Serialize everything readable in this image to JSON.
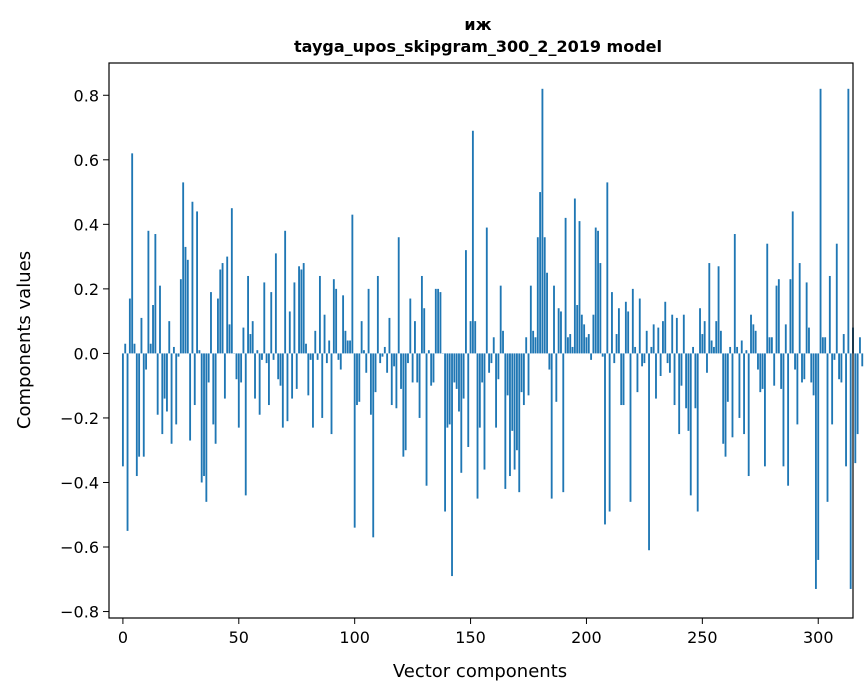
{
  "chart_data": {
    "type": "bar",
    "title": "иж",
    "subtitle": "tayga_upos_skipgram_300_2_2019 model",
    "xlabel": "Vector components",
    "ylabel": "Components values",
    "xlim": [
      -6,
      315
    ],
    "ylim": [
      -0.82,
      0.9
    ],
    "xticks": [
      0,
      50,
      100,
      150,
      200,
      250,
      300
    ],
    "yticks": [
      -0.8,
      -0.6,
      -0.4,
      -0.2,
      0.0,
      0.2,
      0.4,
      0.6,
      0.8
    ],
    "ytick_labels": [
      "−0.8",
      "−0.6",
      "−0.4",
      "−0.2",
      "0.0",
      "0.2",
      "0.4",
      "0.6",
      "0.8"
    ],
    "bar_color": "#1f77b4",
    "values": [
      -0.35,
      0.03,
      -0.55,
      0.17,
      0.62,
      0.03,
      -0.38,
      -0.32,
      0.11,
      -0.32,
      -0.05,
      0.38,
      0.03,
      0.15,
      0.37,
      -0.19,
      0.21,
      -0.25,
      -0.14,
      -0.18,
      0.1,
      -0.28,
      0.02,
      -0.22,
      -0.01,
      0.23,
      0.53,
      0.33,
      0.29,
      -0.27,
      0.47,
      -0.16,
      0.44,
      0.01,
      -0.4,
      -0.38,
      -0.46,
      -0.09,
      0.19,
      -0.22,
      -0.28,
      0.17,
      0.26,
      0.28,
      -0.14,
      0.3,
      0.09,
      0.45,
      0.0,
      -0.08,
      -0.23,
      -0.09,
      0.08,
      -0.44,
      0.24,
      0.06,
      0.1,
      -0.14,
      0.01,
      -0.19,
      -0.02,
      0.22,
      -0.03,
      -0.16,
      0.19,
      -0.02,
      0.31,
      -0.08,
      -0.1,
      -0.23,
      0.38,
      -0.21,
      0.13,
      -0.14,
      0.22,
      -0.11,
      0.27,
      0.26,
      0.28,
      0.03,
      -0.13,
      -0.02,
      -0.23,
      0.07,
      -0.02,
      0.24,
      -0.2,
      0.12,
      -0.03,
      0.04,
      -0.25,
      0.23,
      0.2,
      -0.02,
      -0.05,
      0.18,
      0.07,
      0.04,
      0.04,
      0.43,
      -0.54,
      -0.16,
      -0.15,
      0.1,
      0.01,
      -0.06,
      0.2,
      -0.19,
      -0.57,
      -0.12,
      0.24,
      -0.03,
      -0.01,
      0.02,
      -0.06,
      0.11,
      -0.16,
      -0.04,
      -0.17,
      0.36,
      -0.11,
      -0.32,
      -0.3,
      -0.03,
      0.17,
      -0.09,
      0.1,
      -0.09,
      -0.2,
      0.24,
      0.14,
      -0.41,
      0.01,
      -0.1,
      -0.09,
      0.2,
      0.2,
      0.19,
      0.0,
      -0.49,
      -0.23,
      -0.22,
      -0.69,
      -0.09,
      -0.11,
      -0.18,
      -0.37,
      -0.14,
      0.32,
      -0.29,
      0.1,
      0.69,
      0.1,
      -0.45,
      -0.23,
      -0.09,
      -0.36,
      0.39,
      -0.06,
      -0.03,
      0.05,
      -0.23,
      -0.08,
      0.21,
      0.07,
      -0.42,
      -0.13,
      -0.38,
      -0.24,
      -0.36,
      -0.3,
      -0.43,
      -0.12,
      -0.16,
      0.05,
      -0.13,
      0.21,
      0.07,
      0.05,
      0.36,
      0.5,
      0.82,
      0.36,
      0.25,
      -0.05,
      -0.45,
      0.21,
      -0.15,
      0.14,
      0.13,
      -0.43,
      0.42,
      0.05,
      0.06,
      0.02,
      0.48,
      0.15,
      0.41,
      0.12,
      0.09,
      0.05,
      0.06,
      -0.02,
      0.12,
      0.39,
      0.38,
      0.28,
      -0.01,
      -0.53,
      0.53,
      -0.49,
      0.19,
      -0.03,
      0.06,
      0.14,
      -0.16,
      -0.16,
      0.16,
      0.13,
      -0.46,
      0.2,
      0.02,
      -0.12,
      0.17,
      -0.04,
      -0.03,
      0.07,
      -0.61,
      0.02,
      0.09,
      -0.14,
      0.08,
      -0.07,
      0.1,
      0.16,
      -0.03,
      -0.06,
      0.12,
      -0.16,
      0.11,
      -0.25,
      -0.1,
      0.12,
      -0.17,
      -0.24,
      -0.44,
      0.02,
      -0.17,
      -0.49,
      0.14,
      0.06,
      0.1,
      -0.06,
      0.28,
      0.04,
      0.02,
      0.1,
      0.27,
      0.07,
      -0.28,
      -0.32,
      -0.15,
      0.02,
      -0.26,
      0.37,
      0.02,
      -0.2,
      0.04,
      -0.25,
      0.01,
      -0.38,
      0.12,
      0.09,
      0.07,
      -0.05,
      -0.12,
      -0.11,
      -0.35,
      0.34,
      0.05,
      0.05,
      -0.1,
      0.21,
      0.23,
      -0.11,
      -0.35,
      0.09,
      -0.41,
      0.23,
      0.44,
      -0.05,
      -0.22,
      0.28,
      -0.09,
      -0.08,
      0.22,
      0.08,
      -0.09,
      -0.13,
      -0.73,
      -0.64,
      0.82,
      0.05,
      0.05,
      -0.46,
      0.24,
      -0.22,
      -0.02,
      0.34,
      -0.08,
      -0.09,
      0.06,
      -0.35,
      0.82,
      -0.73,
      0.08,
      -0.34,
      -0.25,
      0.05,
      -0.04
    ]
  }
}
